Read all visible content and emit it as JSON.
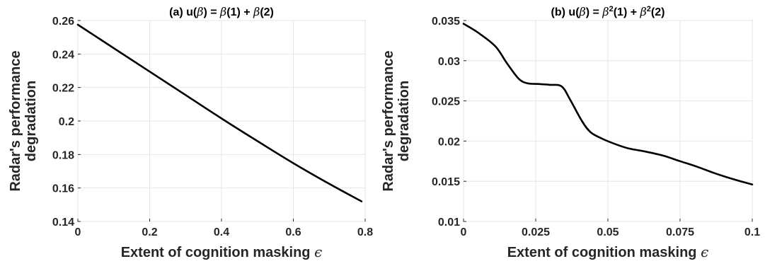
{
  "chart_data": [
    {
      "type": "line",
      "title": {
        "prefix": "(a)  u(",
        "beta": "β",
        "mid": ") = ",
        "t1": "β",
        "a1": "(1) + ",
        "t2": "β",
        "a2": "(2)",
        "sup": ""
      },
      "xlabel": "Extent of cognition masking",
      "xsymbol": "ϵ",
      "ylabel": [
        "Radar's performance",
        "degradation"
      ],
      "xlim": [
        0,
        0.8
      ],
      "ylim": [
        0.14,
        0.26
      ],
      "xticks": [
        0,
        0.2,
        0.4,
        0.6,
        0.8
      ],
      "xticklabels": [
        "0",
        "0.2",
        "0.4",
        "0.6",
        "0.8"
      ],
      "yticks": [
        0.14,
        0.16,
        0.18,
        0.2,
        0.22,
        0.24,
        0.26
      ],
      "yticklabels": [
        "0.14",
        "0.16",
        "0.18",
        "0.2",
        "0.22",
        "0.24",
        "0.26"
      ],
      "grid": true,
      "series": [
        {
          "x": [
            0,
            0.1,
            0.2,
            0.3,
            0.4,
            0.5,
            0.6,
            0.7,
            0.79
          ],
          "y": [
            0.2575,
            0.2435,
            0.2295,
            0.2155,
            0.2015,
            0.188,
            0.1748,
            0.1625,
            0.152
          ]
        }
      ]
    },
    {
      "type": "line",
      "title": {
        "prefix": "(b)  u(",
        "beta": "β",
        "mid": ") = ",
        "t1": "β",
        "a1": "(1) + ",
        "t2": "β",
        "a2": "(2)",
        "sup": "2"
      },
      "xlabel": "Extent of cognition masking",
      "xsymbol": "ϵ",
      "ylabel": [
        "Radar's performance",
        "degradation"
      ],
      "xlim": [
        0,
        0.1
      ],
      "ylim": [
        0.01,
        0.035
      ],
      "xticks": [
        0,
        0.025,
        0.05,
        0.075,
        0.1
      ],
      "xticklabels": [
        "0",
        "0.025",
        "0.05",
        "0.075",
        "0.1"
      ],
      "yticks": [
        0.01,
        0.015,
        0.02,
        0.025,
        0.03,
        0.035
      ],
      "yticklabels": [
        "0.01",
        "0.015",
        "0.02",
        "0.025",
        "0.03",
        "0.035"
      ],
      "grid": true,
      "series": [
        {
          "x": [
            0,
            0.005,
            0.011,
            0.015,
            0.019,
            0.022,
            0.026,
            0.03,
            0.034,
            0.037,
            0.041,
            0.044,
            0.048,
            0.052,
            0.057,
            0.063,
            0.069,
            0.075,
            0.081,
            0.087,
            0.094,
            0.1
          ],
          "y": [
            0.0346,
            0.0335,
            0.0318,
            0.0297,
            0.0278,
            0.0272,
            0.0271,
            0.027,
            0.0268,
            0.0251,
            0.0225,
            0.0211,
            0.0203,
            0.0197,
            0.0191,
            0.0187,
            0.0182,
            0.0175,
            0.0168,
            0.016,
            0.0152,
            0.0146
          ]
        }
      ]
    }
  ]
}
